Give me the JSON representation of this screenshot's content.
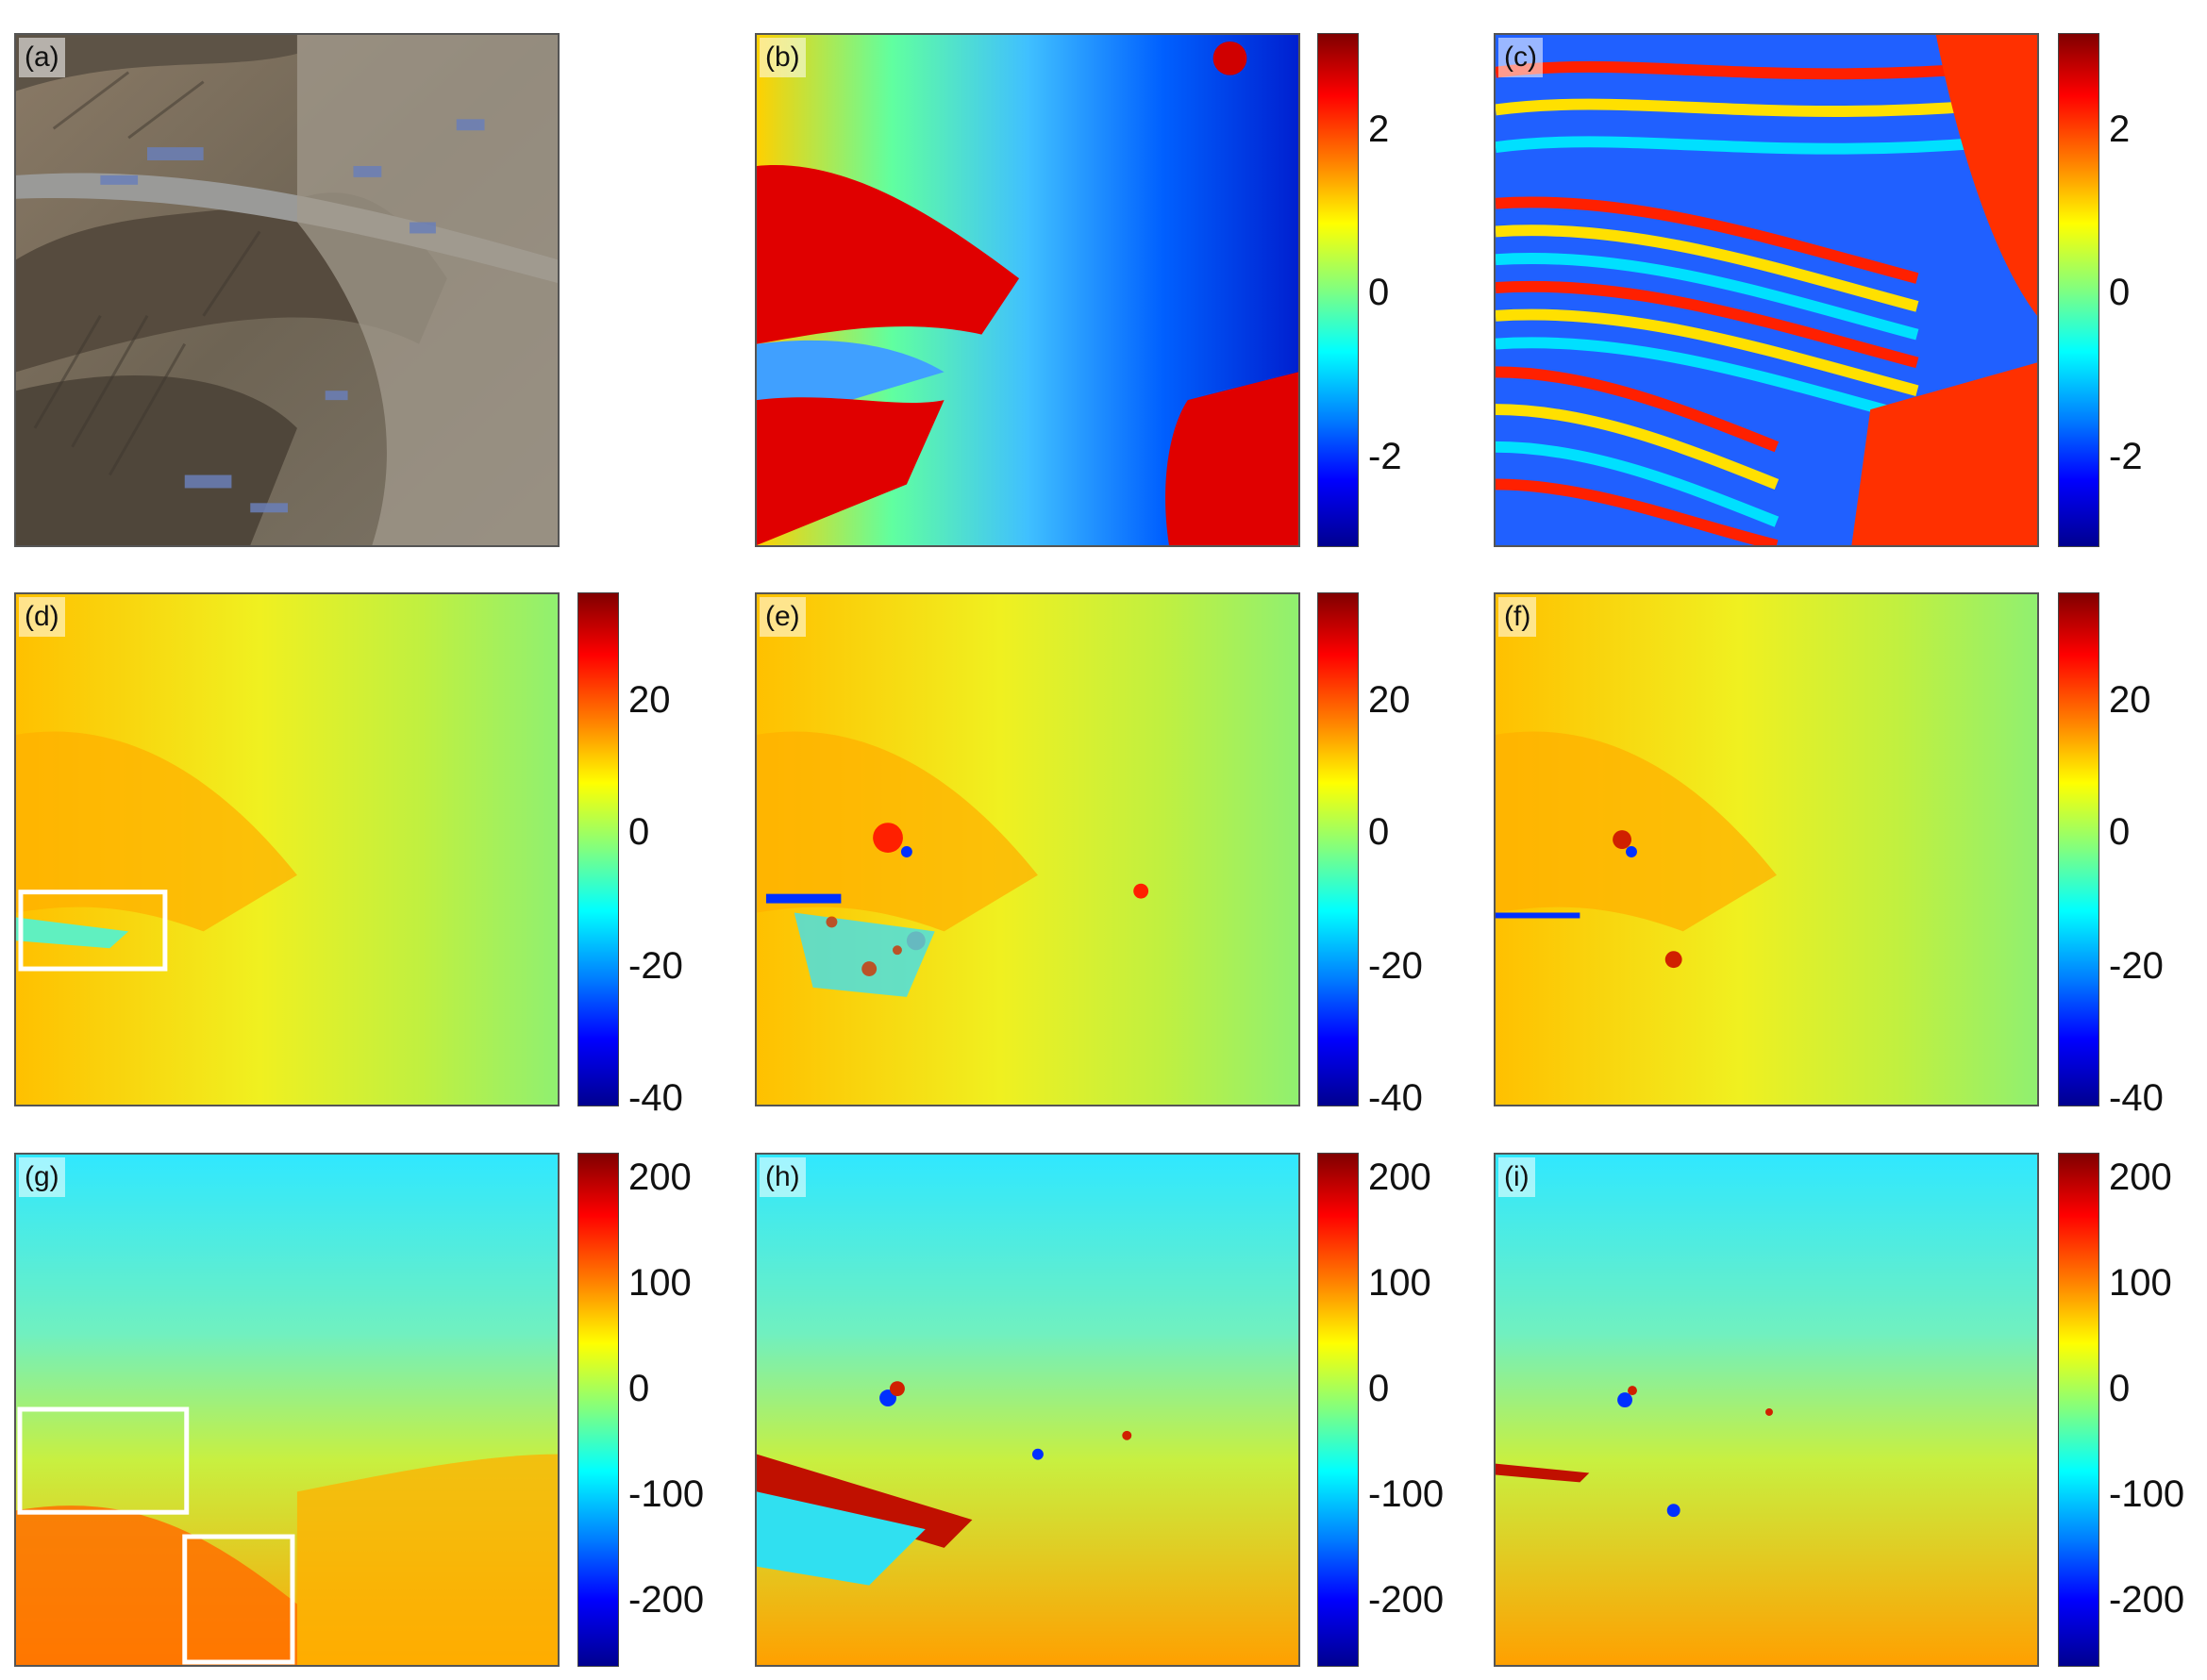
{
  "panels": [
    {
      "label": "(a)",
      "kind": "photo"
    },
    {
      "label": "(b)",
      "kind": "wrapped-smooth"
    },
    {
      "label": "(c)",
      "kind": "wrapped-fringes"
    },
    {
      "label": "(d)",
      "kind": "deformation-smooth"
    },
    {
      "label": "(e)",
      "kind": "deformation-noisy"
    },
    {
      "label": "(f)",
      "kind": "deformation-clean"
    },
    {
      "label": "(g)",
      "kind": "deformation-large"
    },
    {
      "label": "(h)",
      "kind": "deformation-large-noisy"
    },
    {
      "label": "(i)",
      "kind": "deformation-large-clean"
    }
  ],
  "colorbars": {
    "row1": {
      "ticks": [
        "2",
        "0",
        "-2"
      ]
    },
    "row2": {
      "ticks": [
        "20",
        "0",
        "-20",
        "-40"
      ]
    },
    "row3": {
      "ticks": [
        "200",
        "100",
        "0",
        "-100",
        "-200"
      ]
    }
  },
  "colors": {
    "jet": [
      "#00008f",
      "#0000ff",
      "#0080ff",
      "#00ffff",
      "#80ff80",
      "#ffff00",
      "#ff8000",
      "#ff0000",
      "#800000"
    ],
    "highlight_box": "#ffffff"
  }
}
